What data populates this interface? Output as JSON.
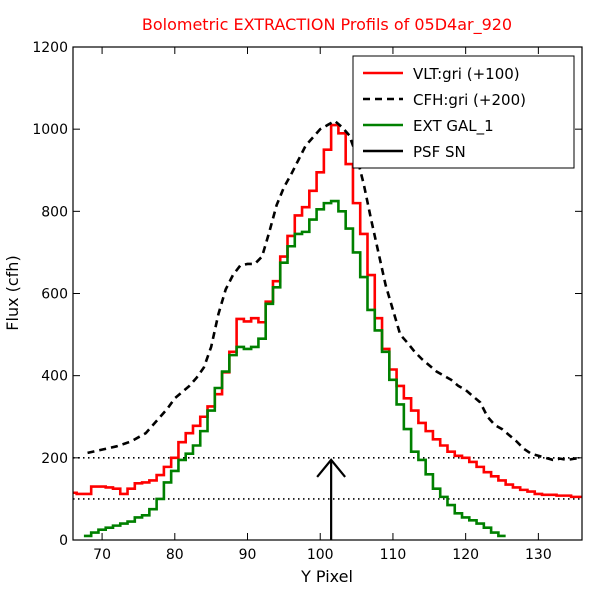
{
  "chart_data": {
    "type": "line",
    "title": "Bolometric EXTRACTION Profils of 05D4ar_920",
    "title_color": "#ff0000",
    "xlabel": "Y Pixel",
    "ylabel": "Flux (cfh)",
    "xlim": [
      66,
      136
    ],
    "ylim": [
      0,
      1200
    ],
    "xticks": [
      70,
      80,
      90,
      100,
      110,
      120,
      130
    ],
    "yticks": [
      0,
      200,
      400,
      600,
      800,
      1000,
      1200
    ],
    "grid": false,
    "legend_position": "top-right",
    "series": [
      {
        "name": "VLT:gri (+100)",
        "color": "#ff0000",
        "style": "steps-solid",
        "x": [
          66,
          67,
          68,
          69,
          70,
          71,
          72,
          73,
          74,
          75,
          76,
          77,
          78,
          79,
          80,
          81,
          82,
          83,
          84,
          85,
          86,
          87,
          88,
          89,
          90,
          91,
          92,
          93,
          94,
          95,
          96,
          97,
          98,
          99,
          100,
          101,
          102,
          103,
          104,
          105,
          106,
          107,
          108,
          109,
          110,
          111,
          112,
          113,
          114,
          115,
          116,
          117,
          118,
          119,
          120,
          121,
          122,
          123,
          124,
          125,
          126,
          127,
          128,
          129,
          130,
          131,
          132,
          133,
          134,
          135,
          136
        ],
        "values": [
          115,
          112,
          112,
          130,
          130,
          128,
          125,
          112,
          125,
          138,
          140,
          145,
          158,
          178,
          200,
          238,
          260,
          278,
          300,
          325,
          355,
          408,
          458,
          538,
          532,
          540,
          530,
          580,
          630,
          690,
          740,
          790,
          810,
          850,
          895,
          950,
          1010,
          990,
          915,
          820,
          745,
          645,
          540,
          465,
          415,
          375,
          345,
          315,
          285,
          265,
          245,
          230,
          215,
          205,
          200,
          190,
          178,
          165,
          155,
          145,
          135,
          128,
          122,
          118,
          112,
          110,
          110,
          108,
          108,
          105,
          105
        ]
      },
      {
        "name": "CFH:gri (+200)",
        "color": "#000000",
        "style": "dashed",
        "x": [
          68,
          70,
          72,
          74,
          76,
          78,
          79,
          80,
          81,
          82,
          83,
          84,
          85,
          86,
          87,
          88,
          89,
          90,
          91,
          92,
          93,
          94,
          95,
          96,
          97,
          98,
          99,
          100,
          101,
          102,
          103,
          104,
          105,
          106,
          107,
          108,
          109,
          110,
          111,
          112,
          113,
          114,
          115,
          116,
          117,
          118,
          119,
          120,
          121,
          122,
          123,
          124,
          125,
          126,
          127,
          128,
          129,
          130,
          131,
          132,
          133,
          134,
          135,
          136
        ],
        "values": [
          212,
          220,
          228,
          240,
          260,
          300,
          320,
          345,
          360,
          375,
          395,
          420,
          470,
          550,
          610,
          645,
          668,
          672,
          672,
          690,
          750,
          815,
          858,
          890,
          925,
          960,
          980,
          1000,
          1010,
          1020,
          1005,
          985,
          935,
          865,
          780,
          700,
          620,
          560,
          500,
          480,
          458,
          440,
          425,
          410,
          400,
          390,
          375,
          365,
          350,
          335,
          300,
          280,
          270,
          255,
          240,
          222,
          210,
          205,
          200,
          195,
          198,
          195,
          198,
          200
        ]
      },
      {
        "name": "EXT GAL_1",
        "color": "#008000",
        "style": "steps-solid",
        "x": [
          68,
          69,
          70,
          71,
          72,
          73,
          74,
          75,
          76,
          77,
          78,
          79,
          80,
          81,
          82,
          83,
          84,
          85,
          86,
          87,
          88,
          89,
          90,
          91,
          92,
          93,
          94,
          95,
          96,
          97,
          98,
          99,
          100,
          101,
          102,
          103,
          104,
          105,
          106,
          107,
          108,
          109,
          110,
          111,
          112,
          113,
          114,
          115,
          116,
          117,
          118,
          119,
          120,
          121,
          122,
          123,
          124,
          125
        ],
        "values": [
          10,
          18,
          25,
          30,
          35,
          40,
          45,
          55,
          60,
          75,
          100,
          140,
          168,
          195,
          210,
          230,
          265,
          315,
          370,
          410,
          450,
          470,
          465,
          470,
          490,
          575,
          615,
          675,
          715,
          745,
          750,
          780,
          805,
          820,
          825,
          800,
          758,
          700,
          640,
          560,
          510,
          458,
          390,
          330,
          270,
          215,
          195,
          160,
          125,
          105,
          85,
          65,
          55,
          48,
          40,
          30,
          18,
          10
        ]
      },
      {
        "name": "PSF SN",
        "color": "#000000",
        "style": "arrow",
        "x": 101.5,
        "values": [
          0,
          195
        ]
      }
    ],
    "hlines": [
      {
        "y": 200,
        "style": "dotted",
        "color": "#000000"
      },
      {
        "y": 100,
        "style": "dotted",
        "color": "#000000"
      }
    ]
  }
}
